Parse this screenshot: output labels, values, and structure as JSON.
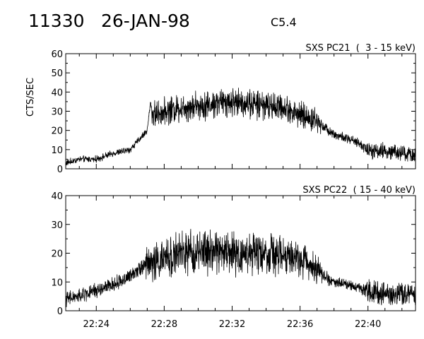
{
  "header": {
    "event_id": "11330",
    "date": "26-JAN-98",
    "flare_class": "C5.4"
  },
  "chart_data": [
    {
      "type": "line",
      "title": "SXS PC21  (  3 - 15 keV)",
      "ylabel": "CTS/SEC",
      "xlabel": "",
      "x_unit": "UT time (hh:mm)",
      "xlim": [
        "22:22.2",
        "22:42.8"
      ],
      "ylim": [
        0,
        60
      ],
      "yticks": [
        "0",
        "10",
        "20",
        "30",
        "40",
        "50",
        "60"
      ],
      "xticks": [],
      "grid": false,
      "series": [
        {
          "x": [
            "22:22.2",
            "22:23.0",
            "22:24.0",
            "22:25.0",
            "22:26.0",
            "22:26.5",
            "22:27.0",
            "22:27.2",
            "22:27.3",
            "22:28.0",
            "22:29.0",
            "22:30.0",
            "22:31.0",
            "22:32.0",
            "22:33.0",
            "22:34.0",
            "22:35.0",
            "22:36.0",
            "22:37.0",
            "22:37.4",
            "22:38.0",
            "22:39.0",
            "22:39.5",
            "22:40.0",
            "22:41.0",
            "22:42.0",
            "22:42.8"
          ],
          "values": [
            3,
            5,
            5,
            8,
            10,
            15,
            20,
            35,
            28,
            30,
            32,
            33,
            34,
            35,
            34,
            33,
            32,
            28,
            25,
            22,
            18,
            15,
            13,
            10,
            9,
            8,
            7
          ],
          "spread": [
            2,
            2,
            2,
            2,
            2,
            2,
            2,
            2,
            8,
            8,
            9,
            9,
            9,
            9,
            9,
            9,
            8,
            8,
            8,
            3,
            3,
            3,
            3,
            5,
            5,
            5,
            5
          ]
        }
      ]
    },
    {
      "type": "line",
      "title": "SXS PC22  ( 15 - 40 keV)",
      "ylabel": "",
      "xlabel": "",
      "x_unit": "UT time (hh:mm)",
      "xlim": [
        "22:22.2",
        "22:42.8"
      ],
      "ylim": [
        0,
        40
      ],
      "yticks": [
        "0",
        "10",
        "20",
        "30",
        "40"
      ],
      "xticks": [
        "22:24",
        "22:28",
        "22:32",
        "22:36",
        "22:40"
      ],
      "grid": false,
      "series": [
        {
          "x": [
            "22:22.2",
            "22:23.0",
            "22:24.0",
            "22:25.0",
            "22:26.0",
            "22:26.5",
            "22:27.0",
            "22:28.0",
            "22:29.0",
            "22:30.0",
            "22:31.0",
            "22:32.0",
            "22:33.0",
            "22:34.0",
            "22:35.0",
            "22:36.0",
            "22:37.0",
            "22:37.4",
            "22:38.0",
            "22:39.0",
            "22:39.5",
            "22:40.0",
            "22:41.0",
            "22:42.0",
            "22:42.8"
          ],
          "values": [
            4,
            5,
            7,
            9,
            12,
            15,
            16,
            18,
            20,
            20,
            21,
            20,
            20,
            20,
            19,
            18,
            15,
            12,
            10,
            9,
            8,
            7,
            6,
            6,
            5
          ],
          "spread": [
            3,
            3,
            3,
            3,
            3,
            3,
            7,
            8,
            9,
            9,
            9,
            9,
            9,
            9,
            8,
            7,
            6,
            3,
            2,
            2,
            2,
            5,
            5,
            5,
            5
          ]
        }
      ]
    }
  ]
}
